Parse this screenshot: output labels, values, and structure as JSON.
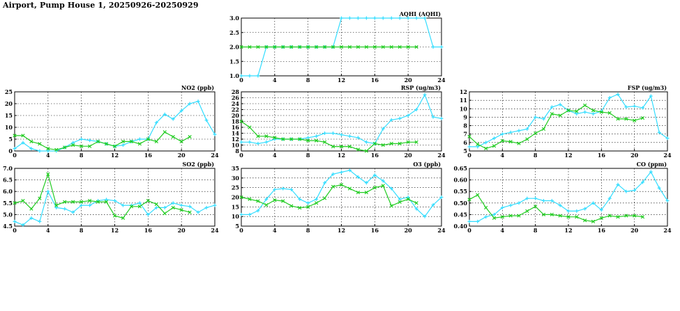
{
  "page": {
    "title": "Airport, Pump House 1, 20250926-20250929"
  },
  "colors": {
    "series_a": "#33ddff",
    "series_b": "#22cc22"
  },
  "chart_data": [
    {
      "id": "aqhi",
      "type": "line",
      "title": "AQHI (AQHI)",
      "xlim": [
        0,
        24
      ],
      "xticks": [
        0,
        4,
        8,
        12,
        16,
        20,
        24
      ],
      "ylim": [
        1.0,
        3.0
      ],
      "yticks": [
        "1.0",
        "1.5",
        "2.0",
        "2.5",
        "3.0"
      ],
      "grid": true,
      "series": [
        {
          "color": "#33ddff",
          "x": [
            0,
            1,
            2,
            3,
            4,
            5,
            6,
            7,
            8,
            9,
            10,
            11,
            12,
            13,
            14,
            15,
            16,
            17,
            18,
            19,
            20,
            21,
            22,
            23,
            24
          ],
          "y": [
            1,
            1,
            1,
            2,
            2,
            2,
            2,
            2,
            2,
            2,
            2,
            2,
            3,
            3,
            3,
            3,
            3,
            3,
            3,
            3,
            3,
            3,
            3,
            2,
            2
          ]
        },
        {
          "color": "#22cc22",
          "x": [
            0,
            1,
            2,
            3,
            4,
            5,
            6,
            7,
            8,
            9,
            10,
            11,
            12,
            13,
            14,
            15,
            16,
            17,
            18,
            19,
            20,
            21
          ],
          "y": [
            2,
            2,
            2,
            2,
            2,
            2,
            2,
            2,
            2,
            2,
            2,
            2,
            2,
            2,
            2,
            2,
            2,
            2,
            2,
            2,
            2,
            2
          ]
        }
      ]
    },
    {
      "id": "no2",
      "type": "line",
      "title": "NO2 (ppb)",
      "xlim": [
        0,
        24
      ],
      "xticks": [
        0,
        4,
        8,
        12,
        16,
        20,
        24
      ],
      "ylim": [
        0,
        25
      ],
      "yticks": [
        "0",
        "5",
        "10",
        "15",
        "20",
        "25"
      ],
      "grid": true,
      "series": [
        {
          "color": "#33ddff",
          "x": [
            0,
            1,
            2,
            3,
            4,
            5,
            6,
            7,
            8,
            9,
            10,
            11,
            12,
            13,
            14,
            15,
            16,
            17,
            18,
            19,
            20,
            21,
            22,
            23,
            24
          ],
          "y": [
            1,
            3.5,
            1,
            0,
            0,
            0,
            1.5,
            3.5,
            5,
            4.5,
            4,
            3,
            2,
            2.5,
            4,
            5,
            5,
            12,
            15.5,
            13.5,
            17,
            20,
            21,
            13,
            7
          ]
        },
        {
          "color": "#22cc22",
          "x": [
            0,
            1,
            2,
            3,
            4,
            5,
            6,
            7,
            8,
            9,
            10,
            11,
            12,
            13,
            14,
            15,
            16,
            17,
            18,
            19,
            20,
            21
          ],
          "y": [
            6.5,
            6.5,
            4,
            3,
            1,
            0.5,
            1.5,
            2.5,
            2,
            2,
            4,
            3,
            2,
            4,
            4,
            3,
            5,
            4,
            8,
            6,
            4,
            6
          ]
        }
      ]
    },
    {
      "id": "rsp",
      "type": "line",
      "title": "RSP (ug/m3)",
      "xlim": [
        0,
        24
      ],
      "xticks": [
        0,
        4,
        8,
        12,
        16,
        20,
        24
      ],
      "ylim": [
        8,
        28
      ],
      "yticks": [
        "8",
        "10",
        "12",
        "14",
        "16",
        "18",
        "20",
        "22",
        "24",
        "26",
        "28"
      ],
      "grid": true,
      "series": [
        {
          "color": "#33ddff",
          "x": [
            0,
            1,
            2,
            3,
            4,
            5,
            6,
            7,
            8,
            9,
            10,
            11,
            12,
            13,
            14,
            15,
            16,
            17,
            18,
            19,
            20,
            21,
            22,
            23,
            24
          ],
          "y": [
            11,
            11,
            10.5,
            11,
            12,
            12,
            12,
            12,
            12.5,
            13,
            14,
            14,
            13.5,
            13,
            12.5,
            11,
            10.5,
            15.5,
            18.5,
            19,
            20,
            22,
            27,
            19.5,
            19
          ]
        },
        {
          "color": "#22cc22",
          "x": [
            0,
            1,
            2,
            3,
            4,
            5,
            6,
            7,
            8,
            9,
            10,
            11,
            12,
            13,
            14,
            15,
            16,
            17,
            18,
            19,
            20,
            21
          ],
          "y": [
            18,
            16,
            13,
            13,
            12.5,
            12,
            12,
            12,
            11.5,
            11.5,
            11,
            9.5,
            9.5,
            9.5,
            8.5,
            8,
            10.5,
            10,
            10.5,
            10.5,
            11,
            11
          ]
        }
      ]
    },
    {
      "id": "fsp",
      "type": "line",
      "title": "FSP (ug/m3)",
      "xlim": [
        0,
        24
      ],
      "xticks": [
        0,
        4,
        8,
        12,
        16,
        20,
        24
      ],
      "ylim": [
        5,
        12
      ],
      "yticks": [
        "5",
        "6",
        "7",
        "8",
        "9",
        "10",
        "11",
        "12"
      ],
      "grid": true,
      "series": [
        {
          "color": "#33ddff",
          "x": [
            0,
            1,
            2,
            3,
            4,
            5,
            6,
            7,
            8,
            9,
            10,
            11,
            12,
            13,
            14,
            15,
            16,
            17,
            18,
            19,
            20,
            21,
            22,
            23,
            24
          ],
          "y": [
            5.5,
            5.5,
            6,
            6.5,
            7,
            7.2,
            7.4,
            7.6,
            9,
            8.8,
            10.2,
            10.5,
            9.8,
            9.4,
            9.6,
            9.4,
            9.7,
            11.3,
            11.7,
            10.2,
            10.3,
            10.1,
            11.5,
            7.2,
            6.5
          ]
        },
        {
          "color": "#22cc22",
          "x": [
            0,
            1,
            2,
            3,
            4,
            5,
            6,
            7,
            8,
            9,
            10,
            11,
            12,
            13,
            14,
            15,
            16,
            17,
            18,
            19,
            20,
            21
          ],
          "y": [
            6.7,
            5.8,
            5.3,
            5.6,
            6.2,
            6.1,
            5.9,
            6.4,
            7.1,
            7.6,
            9.4,
            9.2,
            9.8,
            9.7,
            10.4,
            9.8,
            9.6,
            9.5,
            8.8,
            8.8,
            8.6,
            8.9
          ]
        }
      ]
    },
    {
      "id": "so2",
      "type": "line",
      "title": "SO2 (ppb)",
      "xlim": [
        0,
        24
      ],
      "xticks": [
        0,
        4,
        8,
        12,
        16,
        20,
        24
      ],
      "ylim": [
        4.5,
        7.0
      ],
      "yticks": [
        "4.5",
        "5.0",
        "5.5",
        "6.0",
        "6.5",
        "7.0"
      ],
      "grid": true,
      "series": [
        {
          "color": "#33ddff",
          "x": [
            0,
            1,
            2,
            3,
            4,
            5,
            6,
            7,
            8,
            9,
            10,
            11,
            12,
            13,
            14,
            15,
            16,
            17,
            18,
            19,
            20,
            21,
            22,
            23,
            24
          ],
          "y": [
            4.7,
            4.55,
            4.85,
            4.7,
            6.0,
            5.3,
            5.25,
            5.1,
            5.4,
            5.4,
            5.6,
            5.65,
            5.6,
            5.4,
            5.4,
            5.5,
            5.0,
            5.3,
            5.3,
            5.5,
            5.4,
            5.35,
            5.1,
            5.3,
            5.4
          ]
        },
        {
          "color": "#22cc22",
          "x": [
            0,
            1,
            2,
            3,
            4,
            5,
            6,
            7,
            8,
            9,
            10,
            11,
            12,
            13,
            14,
            15,
            16,
            17,
            18,
            19,
            20,
            21
          ],
          "y": [
            5.5,
            5.6,
            5.25,
            5.7,
            6.75,
            5.4,
            5.55,
            5.55,
            5.55,
            5.6,
            5.55,
            5.55,
            4.95,
            4.85,
            5.35,
            5.35,
            5.6,
            5.45,
            5.05,
            5.3,
            5.2,
            5.1
          ]
        }
      ]
    },
    {
      "id": "o3",
      "type": "line",
      "title": "O3 (ppb)",
      "xlim": [
        0,
        24
      ],
      "xticks": [
        0,
        4,
        8,
        12,
        16,
        20,
        24
      ],
      "ylim": [
        5,
        35
      ],
      "yticks": [
        "5",
        "10",
        "15",
        "20",
        "25",
        "30",
        "35"
      ],
      "grid": true,
      "series": [
        {
          "color": "#33ddff",
          "x": [
            0,
            1,
            2,
            3,
            4,
            5,
            6,
            7,
            8,
            9,
            10,
            11,
            12,
            13,
            14,
            15,
            16,
            17,
            18,
            19,
            20,
            21,
            22,
            23,
            24
          ],
          "y": [
            11,
            11,
            13,
            19,
            24,
            24.5,
            24,
            19,
            17,
            19,
            27.5,
            32,
            33,
            34,
            30.5,
            27.5,
            31.5,
            28.5,
            24.5,
            19,
            20,
            14,
            10,
            16,
            20
          ]
        },
        {
          "color": "#22cc22",
          "x": [
            0,
            1,
            2,
            3,
            4,
            5,
            6,
            7,
            8,
            9,
            10,
            11,
            12,
            13,
            14,
            15,
            16,
            17,
            18,
            19,
            20,
            21
          ],
          "y": [
            20,
            19,
            18,
            16,
            18.5,
            18,
            15.5,
            14.5,
            15,
            17,
            19.5,
            25.5,
            26.5,
            24.5,
            22.5,
            22.5,
            25,
            26,
            15.5,
            17.5,
            19,
            17
          ]
        }
      ]
    },
    {
      "id": "co",
      "type": "line",
      "title": "CO (ppm)",
      "xlim": [
        0,
        24
      ],
      "xticks": [
        0,
        4,
        8,
        12,
        16,
        20,
        24
      ],
      "ylim": [
        0.4,
        0.65
      ],
      "yticks": [
        "0.40",
        "0.45",
        "0.50",
        "0.55",
        "0.60",
        "0.65"
      ],
      "grid": true,
      "series": [
        {
          "color": "#33ddff",
          "x": [
            0,
            1,
            2,
            3,
            4,
            5,
            6,
            7,
            8,
            9,
            10,
            11,
            12,
            13,
            14,
            15,
            16,
            17,
            18,
            19,
            20,
            21,
            22,
            23,
            24
          ],
          "y": [
            0.42,
            0.42,
            0.44,
            0.45,
            0.48,
            0.49,
            0.5,
            0.52,
            0.52,
            0.51,
            0.51,
            0.49,
            0.465,
            0.465,
            0.475,
            0.5,
            0.47,
            0.52,
            0.58,
            0.55,
            0.555,
            0.59,
            0.635,
            0.565,
            0.51
          ]
        },
        {
          "color": "#22cc22",
          "x": [
            0,
            1,
            2,
            3,
            4,
            5,
            6,
            7,
            8,
            9,
            10,
            11,
            12,
            13,
            14,
            15,
            16,
            17,
            18,
            19,
            20,
            21
          ],
          "y": [
            0.515,
            0.535,
            0.48,
            0.435,
            0.44,
            0.445,
            0.445,
            0.465,
            0.485,
            0.45,
            0.45,
            0.445,
            0.44,
            0.44,
            0.425,
            0.42,
            0.435,
            0.445,
            0.44,
            0.445,
            0.445,
            0.44
          ]
        }
      ]
    }
  ]
}
